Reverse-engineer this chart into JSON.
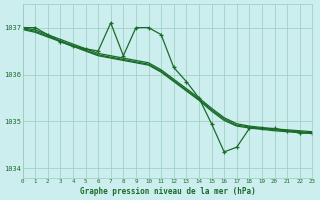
{
  "background_color": "#cceeee",
  "grid_color": "#99ccbb",
  "line_color": "#1a6b2a",
  "title": "Graphe pression niveau de la mer (hPa)",
  "xlim": [
    0,
    23
  ],
  "ylim": [
    1033.8,
    1037.5
  ],
  "yticks": [
    1034,
    1035,
    1036,
    1037
  ],
  "xticks": [
    0,
    1,
    2,
    3,
    4,
    5,
    6,
    7,
    8,
    9,
    10,
    11,
    12,
    13,
    14,
    15,
    16,
    17,
    18,
    19,
    20,
    21,
    22,
    23
  ],
  "series_zigzag": {
    "x": [
      0,
      1,
      2,
      3,
      4,
      5,
      6,
      7,
      8,
      9,
      10,
      11,
      12,
      13,
      14,
      15,
      16,
      17,
      18,
      19,
      20,
      21,
      22,
      23
    ],
    "y": [
      1037.0,
      1037.0,
      1036.85,
      1036.7,
      1036.6,
      1036.55,
      1036.5,
      1037.1,
      1036.4,
      1037.0,
      1037.0,
      1036.85,
      1036.15,
      1035.85,
      1035.5,
      1034.95,
      1034.35,
      1034.45,
      1034.85,
      1034.85,
      1034.85,
      1034.8,
      1034.75,
      1034.75
    ]
  },
  "series_smooth1": {
    "x": [
      0,
      1,
      2,
      3,
      4,
      5,
      6,
      7,
      8,
      9,
      10,
      11,
      12,
      13,
      14,
      15,
      16,
      17,
      18,
      19,
      20,
      21,
      22,
      23
    ],
    "y": [
      1037.0,
      1036.95,
      1036.85,
      1036.75,
      1036.65,
      1036.55,
      1036.45,
      1036.4,
      1036.35,
      1036.3,
      1036.25,
      1036.1,
      1035.9,
      1035.7,
      1035.5,
      1035.28,
      1035.08,
      1034.95,
      1034.9,
      1034.87,
      1034.84,
      1034.82,
      1034.8,
      1034.78
    ]
  },
  "series_smooth2": {
    "x": [
      0,
      1,
      2,
      3,
      4,
      5,
      6,
      7,
      8,
      9,
      10,
      11,
      12,
      13,
      14,
      15,
      16,
      17,
      18,
      19,
      20,
      21,
      22,
      23
    ],
    "y": [
      1036.98,
      1036.92,
      1036.82,
      1036.72,
      1036.62,
      1036.52,
      1036.42,
      1036.37,
      1036.32,
      1036.27,
      1036.22,
      1036.07,
      1035.87,
      1035.67,
      1035.47,
      1035.25,
      1035.05,
      1034.92,
      1034.88,
      1034.85,
      1034.82,
      1034.8,
      1034.78,
      1034.76
    ]
  },
  "series_smooth3": {
    "x": [
      0,
      1,
      2,
      3,
      4,
      5,
      6,
      7,
      8,
      9,
      10,
      11,
      12,
      13,
      14,
      15,
      16,
      17,
      18,
      19,
      20,
      21,
      22,
      23
    ],
    "y": [
      1036.96,
      1036.9,
      1036.8,
      1036.7,
      1036.6,
      1036.5,
      1036.4,
      1036.35,
      1036.3,
      1036.25,
      1036.2,
      1036.05,
      1035.85,
      1035.65,
      1035.45,
      1035.22,
      1035.02,
      1034.9,
      1034.86,
      1034.83,
      1034.8,
      1034.78,
      1034.76,
      1034.74
    ]
  }
}
